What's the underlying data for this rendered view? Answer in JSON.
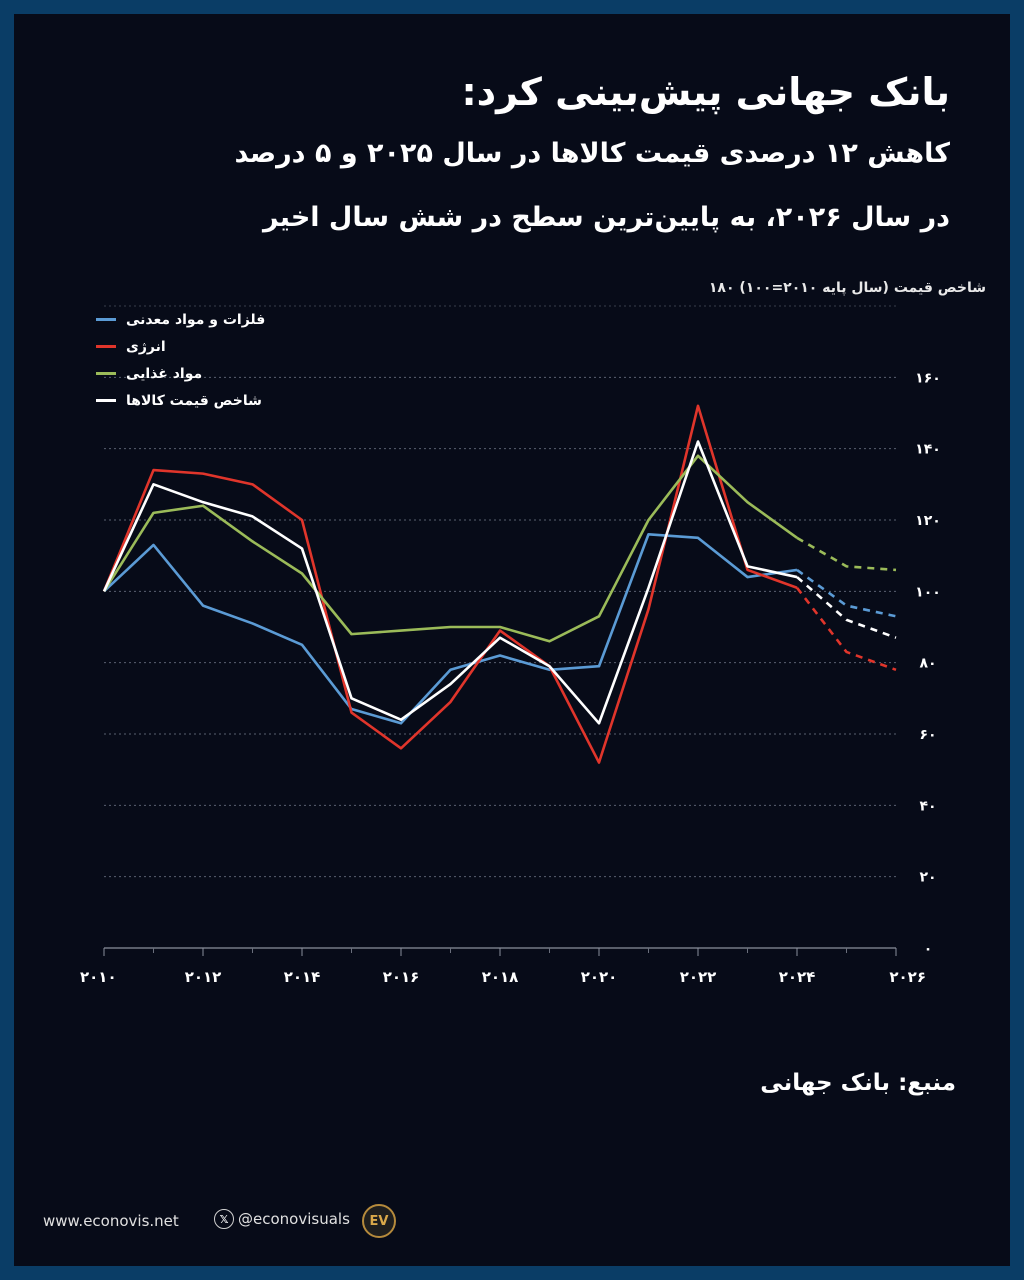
{
  "header": {
    "title": "بانک جهانی پیش‌بینی کرد:",
    "subtitle_line1": "کاهش ۱۲ درصدی قیمت کالاها در سال ۲۰۲۵ و ۵ درصد",
    "subtitle_line2": "در سال ۲۰۲۶، به پایین‌ترین سطح در شش سال اخیر"
  },
  "chart_data": {
    "type": "line",
    "ylabel": "شاخص قیمت (سال پایه ۲۰۱۰=۱۰۰) ۱۸۰",
    "ylim": [
      0,
      180
    ],
    "yticks": [
      0,
      20,
      40,
      60,
      80,
      100,
      120,
      140,
      160
    ],
    "ytick_labels": [
      "۰",
      "۲۰",
      "۴۰",
      "۶۰",
      "۸۰",
      "۱۰۰",
      "۱۲۰",
      "۱۴۰",
      "۱۶۰"
    ],
    "xlim": [
      2010,
      2026
    ],
    "xticks": [
      2010,
      2012,
      2014,
      2016,
      2018,
      2020,
      2022,
      2024,
      2026
    ],
    "xtick_labels": [
      "۲۰۱۰",
      "۲۰۱۲",
      "۲۰۱۴",
      "۲۰۱۶",
      "۲۰۱۸",
      "۲۰۲۰",
      "۲۰۲۲",
      "۲۰۲۴",
      "۲۰۲۶"
    ],
    "x": [
      2010,
      2011,
      2012,
      2013,
      2014,
      2015,
      2016,
      2017,
      2018,
      2019,
      2020,
      2021,
      2022,
      2023,
      2024,
      2025,
      2026
    ],
    "forecast_from": 2024,
    "grid": true,
    "legend_position": "top-left",
    "series": [
      {
        "name": "فلزات و مواد معدنی",
        "color": "#5b9bd5",
        "values": [
          100,
          113,
          96,
          91,
          85,
          67,
          63,
          78,
          82,
          78,
          79,
          116,
          115,
          104,
          106,
          96,
          93
        ]
      },
      {
        "name": "انرژی",
        "color": "#e0352b",
        "values": [
          100,
          134,
          133,
          130,
          120,
          66,
          56,
          69,
          89,
          79,
          52,
          95,
          152,
          106,
          101,
          83,
          78
        ]
      },
      {
        "name": "مواد غذایی",
        "color": "#9bbb59",
        "values": [
          100,
          122,
          124,
          114,
          105,
          88,
          89,
          90,
          90,
          86,
          93,
          120,
          138,
          125,
          115,
          107,
          106
        ]
      },
      {
        "name": "شاخص قیمت کالاها",
        "color": "#ffffff",
        "values": [
          100,
          130,
          125,
          121,
          112,
          70,
          64,
          74,
          87,
          79,
          63,
          101,
          142,
          107,
          104,
          92,
          87
        ]
      }
    ]
  },
  "source": "منبع: بانک جهانی",
  "footer": {
    "website": "www.econovis.net",
    "handle": "@econovisuals",
    "x_glyph": "𝕏",
    "logo_text": "EV"
  }
}
